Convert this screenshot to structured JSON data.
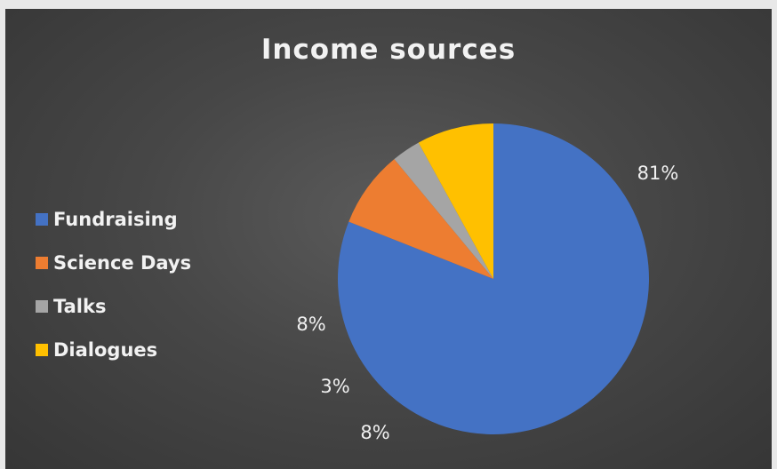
{
  "chart_data": {
    "type": "pie",
    "title": "Income sources",
    "categories": [
      "Fundraising",
      "Science Days",
      "Talks",
      "Dialogues"
    ],
    "values": [
      81,
      8,
      3,
      8
    ],
    "data_labels": [
      "81%",
      "8%",
      "3%",
      "8%"
    ],
    "colors": [
      "#4472C4",
      "#ED7D31",
      "#A5A5A5",
      "#FFC000"
    ],
    "legend_position": "left"
  }
}
